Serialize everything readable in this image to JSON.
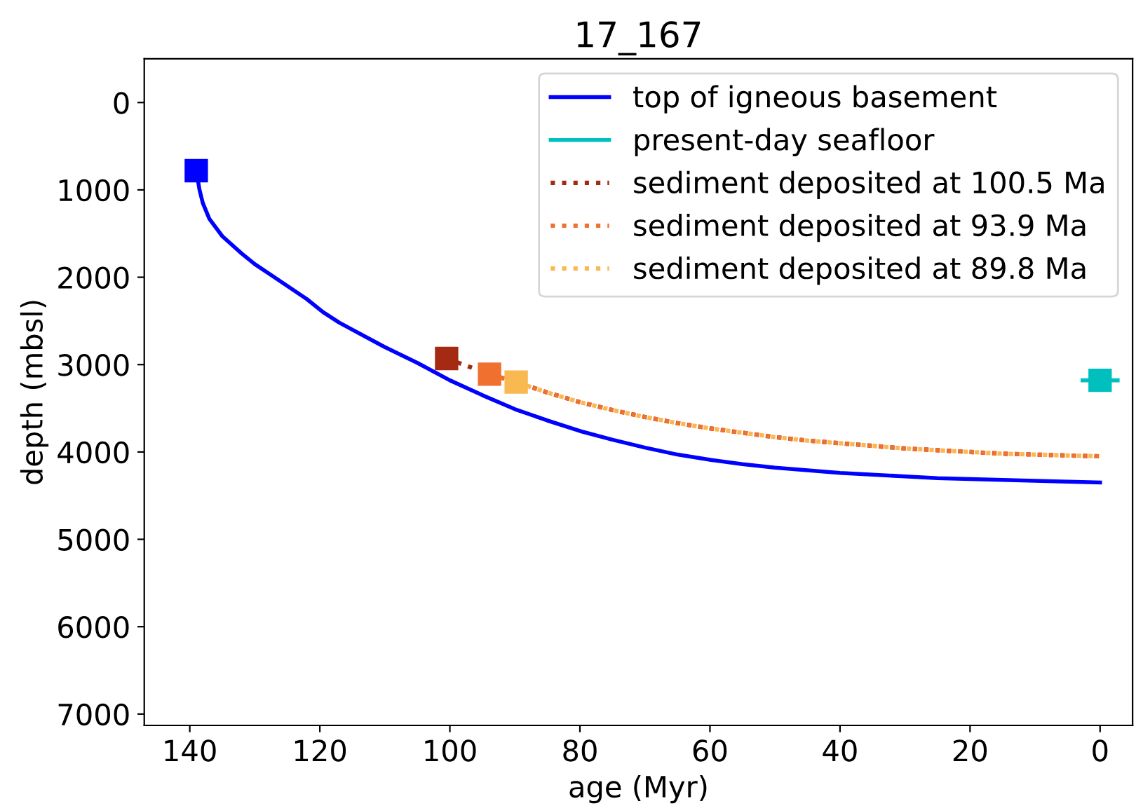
{
  "chart_data": {
    "type": "line",
    "title": "17_167",
    "xlabel": "age (Myr)",
    "ylabel": "depth (mbsl)",
    "xlim": [
      147,
      -5
    ],
    "xticks": [
      140,
      120,
      100,
      80,
      60,
      40,
      20,
      0
    ],
    "ylim": [
      7130,
      -500
    ],
    "yticks": [
      0,
      1000,
      2000,
      3000,
      4000,
      5000,
      6000,
      7000
    ],
    "grid": false,
    "legend": "top right",
    "series": [
      {
        "name": "top of igneous basement",
        "color": "#0000ff",
        "line_style": "solid",
        "marker": "none",
        "x": [
          139,
          138.5,
          138,
          137,
          135,
          132,
          130,
          127,
          125,
          122,
          119.5,
          117,
          115,
          110,
          105,
          100,
          95,
          90,
          85,
          80,
          75,
          70,
          65,
          60,
          55,
          50,
          45,
          40,
          35,
          30,
          25,
          20,
          15,
          10,
          5,
          0
        ],
        "values": [
          780,
          1000,
          1150,
          1330,
          1530,
          1730,
          1850,
          2000,
          2100,
          2250,
          2400,
          2520,
          2600,
          2800,
          2980,
          3180,
          3350,
          3510,
          3640,
          3760,
          3860,
          3950,
          4030,
          4090,
          4140,
          4180,
          4210,
          4240,
          4260,
          4280,
          4300,
          4310,
          4320,
          4330,
          4340,
          4350
        ]
      },
      {
        "name": "present-day seafloor",
        "type": "scatter",
        "color": "#00bfbf",
        "marker": "square",
        "x": [
          0
        ],
        "values": [
          3180
        ],
        "xerrors": [
          3
        ]
      },
      {
        "name": "sediment deposited at 100.5 Ma",
        "color": "#a52a14",
        "line_style": "dotted",
        "marker": "none",
        "x": [
          100.5,
          93.9,
          89.8,
          85,
          80,
          75,
          70,
          65,
          60,
          55,
          50,
          45,
          40,
          35,
          30,
          25,
          20,
          15,
          10,
          5,
          0
        ],
        "values": [
          2930,
          3110,
          3200,
          3320,
          3430,
          3520,
          3600,
          3670,
          3730,
          3780,
          3830,
          3870,
          3900,
          3930,
          3960,
          3980,
          4000,
          4020,
          4030,
          4040,
          4050
        ]
      },
      {
        "name": "sediment deposited at 93.9 Ma",
        "color": "#f07030",
        "line_style": "dotted",
        "marker": "none",
        "x": [
          93.9,
          89.8,
          85,
          80,
          75,
          70,
          65,
          60,
          55,
          50,
          45,
          40,
          35,
          30,
          25,
          20,
          15,
          10,
          5,
          0
        ],
        "values": [
          3110,
          3200,
          3320,
          3430,
          3520,
          3600,
          3670,
          3730,
          3780,
          3830,
          3870,
          3900,
          3930,
          3960,
          3980,
          4000,
          4020,
          4030,
          4040,
          4050
        ]
      },
      {
        "name": "sediment deposited at 89.8 Ma",
        "color": "#f9b850",
        "line_style": "dotted",
        "marker": "none",
        "x": [
          89.8,
          85,
          80,
          75,
          70,
          65,
          60,
          55,
          50,
          45,
          40,
          35,
          30,
          25,
          20,
          15,
          10,
          5,
          0
        ],
        "values": [
          3200,
          3320,
          3430,
          3520,
          3600,
          3670,
          3730,
          3780,
          3830,
          3870,
          3900,
          3930,
          3960,
          3980,
          4000,
          4020,
          4030,
          4040,
          4050
        ]
      },
      {
        "type": "scatter",
        "color": "#0000ff",
        "marker": "square",
        "x": [
          139
        ],
        "values": [
          780
        ]
      },
      {
        "type": "scatter",
        "color": "#a52a14",
        "marker": "square",
        "x": [
          100.5
        ],
        "values": [
          2930
        ]
      },
      {
        "type": "scatter",
        "color": "#f07030",
        "marker": "square",
        "x": [
          93.9
        ],
        "values": [
          3110
        ]
      },
      {
        "type": "scatter",
        "color": "#f9b850",
        "marker": "square",
        "x": [
          89.8
        ],
        "values": [
          3200
        ]
      }
    ]
  }
}
